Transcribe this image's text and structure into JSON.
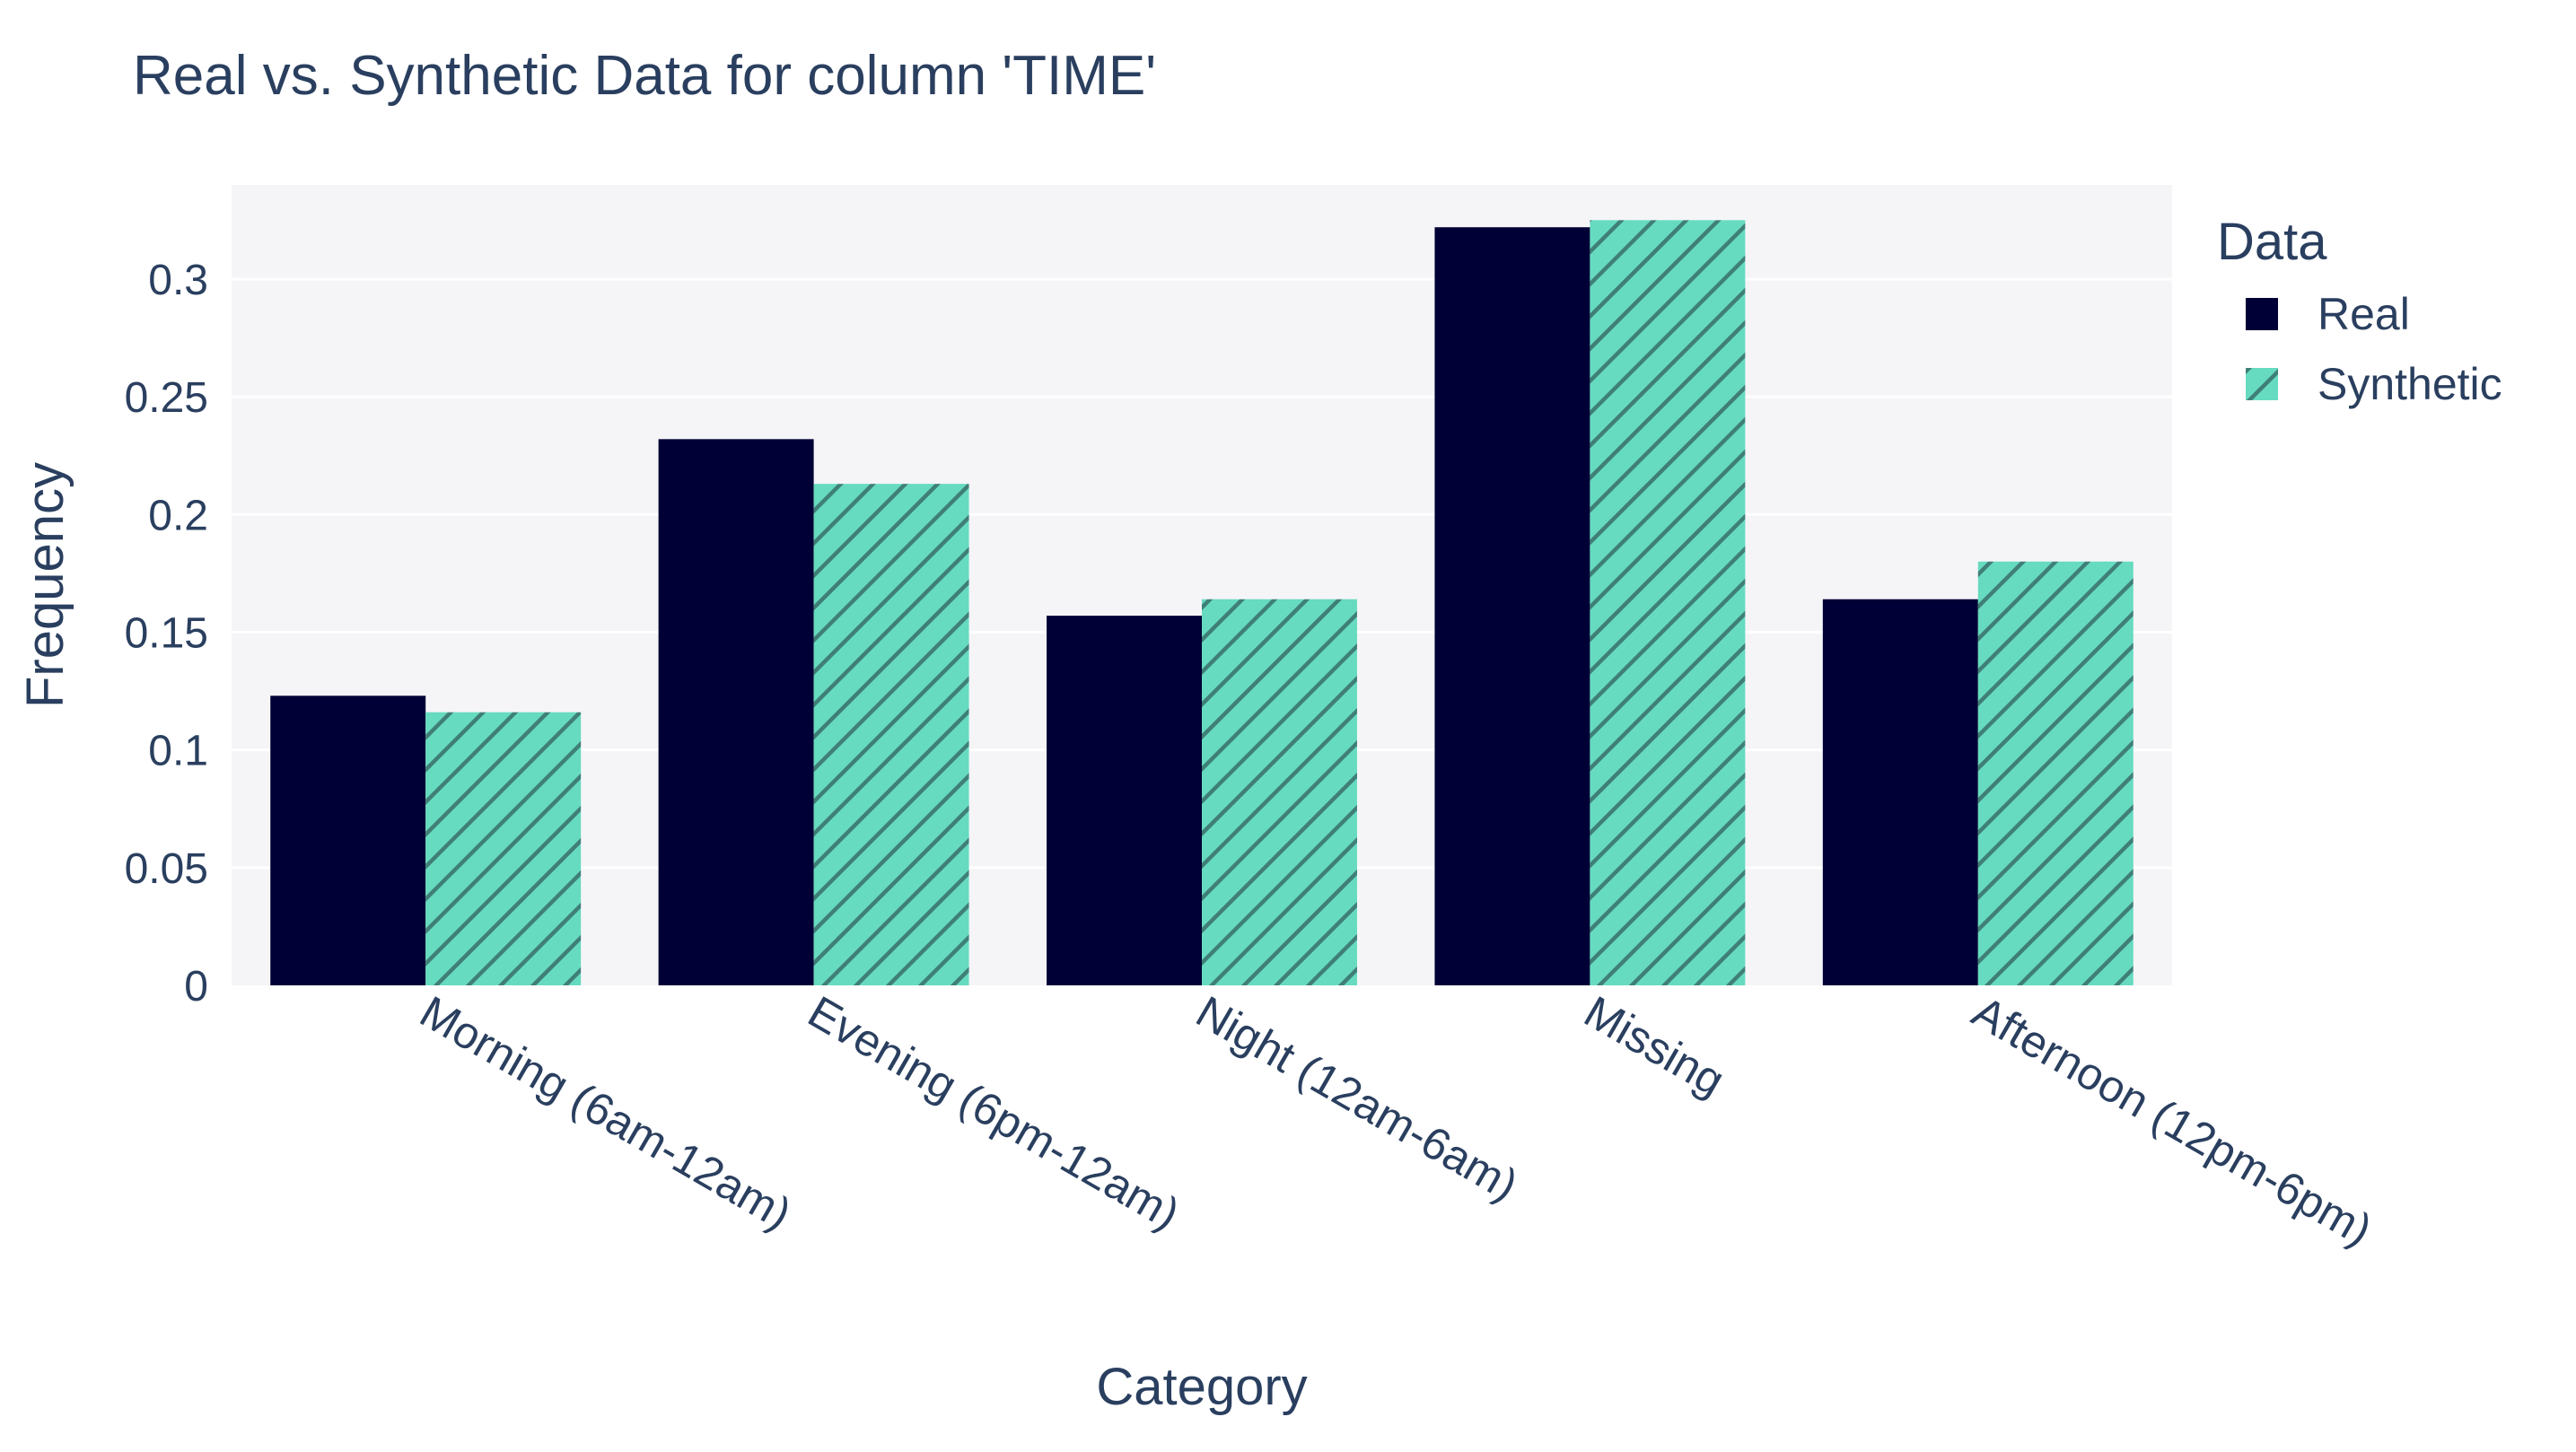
{
  "chart_data": {
    "type": "bar",
    "title": "Real vs. Synthetic Data for column 'TIME'",
    "xlabel": "Category",
    "ylabel": "Frequency",
    "categories": [
      "Morning (6am-12am)",
      "Evening (6pm-12am)",
      "Night (12am-6am)",
      "Missing",
      "Afternoon (12pm-6pm)"
    ],
    "ylim": [
      0,
      0.34
    ],
    "yticks": [
      0,
      0.05,
      0.1,
      0.15,
      0.2,
      0.25,
      0.3
    ],
    "ytick_labels": [
      "0",
      "0.05",
      "0.1",
      "0.15",
      "0.2",
      "0.25",
      "0.3"
    ],
    "grid": true,
    "legend_title": "Data",
    "legend_position": "right",
    "series": [
      {
        "name": "Real",
        "color": "#000036",
        "pattern": "solid",
        "values": [
          0.123,
          0.232,
          0.157,
          0.322,
          0.164
        ]
      },
      {
        "name": "Synthetic",
        "color": "#66dbbf",
        "pattern": "diagonal-hatch",
        "values": [
          0.116,
          0.213,
          0.164,
          0.325,
          0.18
        ]
      }
    ]
  }
}
